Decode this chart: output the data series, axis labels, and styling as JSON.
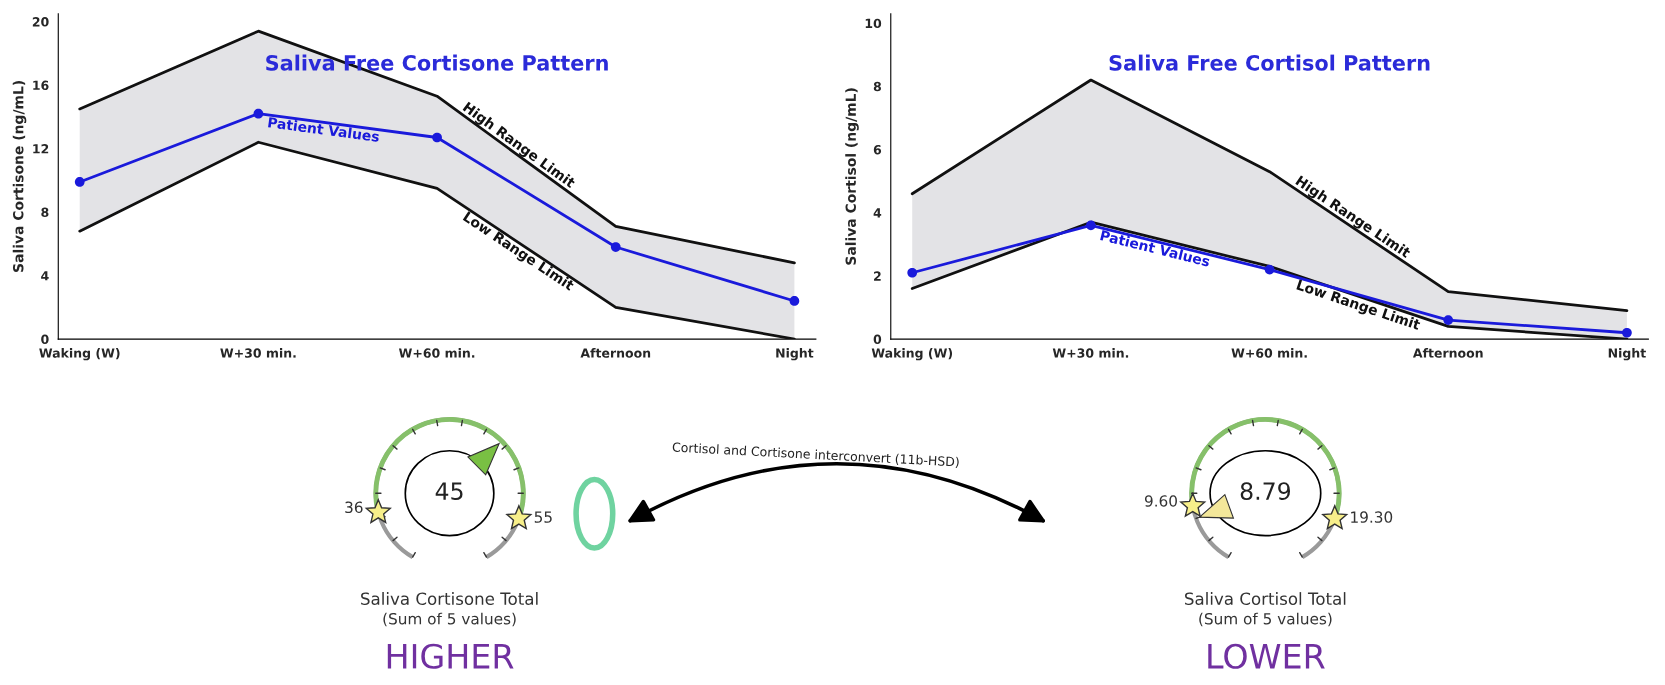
{
  "chart_data": [
    {
      "type": "line",
      "title": "Saliva Free Cortisone Pattern",
      "ylabel": "Saliva Cortisone (ng/mL)",
      "categories": [
        "Waking (W)",
        "W+30 min.",
        "W+60 min.",
        "Afternoon",
        "Night"
      ],
      "ylim": [
        0,
        20.5
      ],
      "yticks": [
        0,
        4,
        8,
        12,
        16,
        20
      ],
      "grid": false,
      "legend": false,
      "series": [
        {
          "name": "High Range Limit",
          "color": "#111111",
          "values": [
            14.5,
            19.4,
            15.3,
            7.1,
            4.8
          ]
        },
        {
          "name": "Low Range Limit",
          "color": "#111111",
          "values": [
            6.8,
            12.4,
            9.5,
            2.0,
            0
          ]
        },
        {
          "name": "Patient Values",
          "color": "#1a1adb",
          "marker": "circle",
          "values": [
            9.9,
            14.2,
            12.7,
            5.8,
            2.4
          ],
          "lower": [
            6.8,
            12.4,
            9.5,
            2.0,
            0
          ],
          "upper": [
            14.5,
            19.4,
            15.3,
            7.1,
            4.8
          ]
        }
      ]
    },
    {
      "type": "line",
      "title": "Saliva Free Cortisol Pattern",
      "ylabel": "Saliva Cortisol (ng/mL)",
      "categories": [
        "Waking (W)",
        "W+30 min.",
        "W+60 min.",
        "Afternoon",
        "Night"
      ],
      "ylim": [
        0,
        10.3
      ],
      "yticks": [
        0,
        2,
        4,
        6,
        8,
        10
      ],
      "grid": false,
      "legend": false,
      "series": [
        {
          "name": "High Range Limit",
          "color": "#111111",
          "values": [
            4.6,
            8.2,
            5.3,
            1.5,
            0.9
          ]
        },
        {
          "name": "Low Range Limit",
          "color": "#111111",
          "values": [
            1.6,
            3.7,
            2.3,
            0.4,
            0
          ]
        },
        {
          "name": "Patient Values",
          "color": "#1a1adb",
          "marker": "circle",
          "values": [
            2.1,
            3.6,
            2.2,
            0.6,
            0.2
          ],
          "lower": [
            1.6,
            3.7,
            2.3,
            0.4,
            0
          ],
          "upper": [
            4.6,
            8.2,
            5.3,
            1.5,
            0.9
          ]
        }
      ]
    },
    {
      "type": "other",
      "title": "Saliva Cortisone Total",
      "subtitle": "(Sum of 5 values)",
      "annotations": [
        "45",
        "36",
        "55",
        "HIGHER",
        "Cortisol and Cortisone interconvert (11b-HSD)"
      ]
    },
    {
      "type": "other",
      "title": "Saliva Cortisol Total",
      "subtitle": "(Sum of 5 values)",
      "annotations": [
        "8.79",
        "9.60",
        "19.30",
        "LOWER"
      ]
    }
  ]
}
